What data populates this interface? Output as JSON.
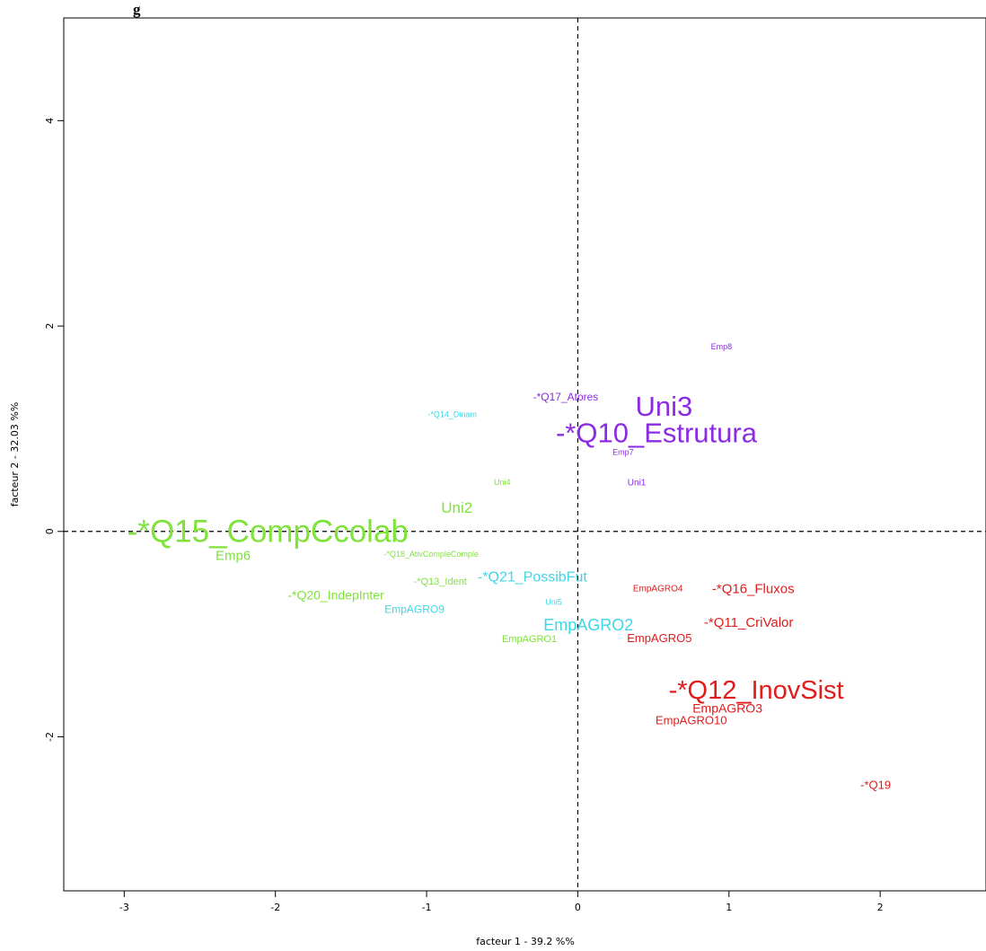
{
  "chart_data": {
    "type": "scatter",
    "title": "g",
    "xlabel": "facteur  1  - 39.2 %%",
    "ylabel": "facteur  2  - 32.03 %%",
    "xlim": [
      -3.4,
      2.7
    ],
    "ylim": [
      -3.5,
      5.0
    ],
    "x_ticks": [
      -3,
      -2,
      -1,
      0,
      1,
      2
    ],
    "y_ticks": [
      -2,
      0,
      2,
      4
    ],
    "reference_lines": {
      "x": 0,
      "y": 0,
      "style": "dashed"
    },
    "grid": false,
    "colors": {
      "purple": "#8B2BE2",
      "green": "#7FE33A",
      "cyan": "#3ED7E6",
      "red": "#E01C1C"
    },
    "labels": [
      {
        "text": "Emp8",
        "x": 0.95,
        "y": 1.8,
        "size": 9,
        "color": "purple"
      },
      {
        "text": "-*Q17_Atores",
        "x": -0.08,
        "y": 1.31,
        "size": 12,
        "color": "purple"
      },
      {
        "text": "Uni3",
        "x": 0.57,
        "y": 1.22,
        "size": 31,
        "color": "purple"
      },
      {
        "text": "-*Q10_Estrutura",
        "x": 0.52,
        "y": 0.96,
        "size": 31,
        "color": "purple"
      },
      {
        "text": "Emp7",
        "x": 0.3,
        "y": 0.77,
        "size": 9,
        "color": "purple"
      },
      {
        "text": "Uni1",
        "x": 0.39,
        "y": 0.47,
        "size": 10,
        "color": "purple"
      },
      {
        "text": "-*Q14_Dinam",
        "x": -0.83,
        "y": 1.14,
        "size": 9,
        "color": "cyan"
      },
      {
        "text": "-*Q21_PossibFut",
        "x": -0.3,
        "y": -0.45,
        "size": 16,
        "color": "cyan"
      },
      {
        "text": "Uni5",
        "x": -0.16,
        "y": -0.69,
        "size": 9,
        "color": "cyan"
      },
      {
        "text": "EmpAGRO9",
        "x": -1.08,
        "y": -0.76,
        "size": 12,
        "color": "cyan"
      },
      {
        "text": "EmpAGRO2",
        "x": 0.07,
        "y": -0.91,
        "size": 18,
        "color": "cyan"
      },
      {
        "text": "Uni4",
        "x": -0.5,
        "y": 0.48,
        "size": 9,
        "color": "green"
      },
      {
        "text": "Uni2",
        "x": -0.8,
        "y": 0.23,
        "size": 17,
        "color": "green"
      },
      {
        "text": "-*Q15_CompCcolab",
        "x": -2.05,
        "y": 0.0,
        "size": 35,
        "color": "green"
      },
      {
        "text": "Emp6",
        "x": -2.28,
        "y": -0.24,
        "size": 15,
        "color": "green"
      },
      {
        "text": "-*Q18_AtivCompleComple",
        "x": -0.97,
        "y": -0.22,
        "size": 9,
        "color": "green"
      },
      {
        "text": "-*Q13_Ident",
        "x": -0.91,
        "y": -0.49,
        "size": 11,
        "color": "green"
      },
      {
        "text": "-*Q20_IndepInter",
        "x": -1.6,
        "y": -0.62,
        "size": 14,
        "color": "green"
      },
      {
        "text": "EmpAGRO1",
        "x": -0.32,
        "y": -1.05,
        "size": 11,
        "color": "green"
      },
      {
        "text": "EmpAGRO4",
        "x": 0.53,
        "y": -0.56,
        "size": 10,
        "color": "red"
      },
      {
        "text": "-*Q16_Fluxos",
        "x": 1.16,
        "y": -0.56,
        "size": 15,
        "color": "red"
      },
      {
        "text": "-*Q11_CriValor",
        "x": 1.13,
        "y": -0.89,
        "size": 15,
        "color": "red"
      },
      {
        "text": "EmpAGRO5",
        "x": 0.54,
        "y": -1.04,
        "size": 13,
        "color": "red"
      },
      {
        "text": "-*Q12_InovSist",
        "x": 1.18,
        "y": -1.55,
        "size": 29,
        "color": "red"
      },
      {
        "text": "EmpAGRO3",
        "x": 0.99,
        "y": -1.72,
        "size": 14,
        "color": "red"
      },
      {
        "text": "EmpAGRO10",
        "x": 0.75,
        "y": -1.84,
        "size": 13,
        "color": "red"
      },
      {
        "text": "-*Q19",
        "x": 1.97,
        "y": -2.47,
        "size": 13,
        "color": "red"
      }
    ]
  }
}
